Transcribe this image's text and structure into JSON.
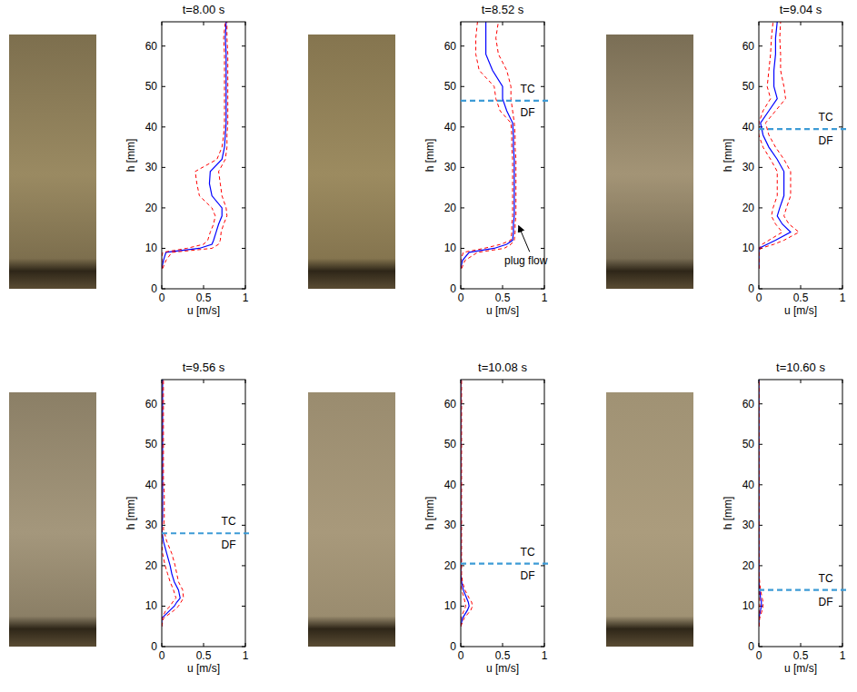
{
  "chart_data": [
    {
      "type": "line",
      "title": "t=8.00 s",
      "x_label": "u [m/s]",
      "y_label": "h [mm]",
      "xlim": [
        0,
        1
      ],
      "ylim": [
        0,
        66
      ],
      "xticks": [
        0,
        0.5,
        1
      ],
      "yticks": [
        0,
        10,
        20,
        30,
        40,
        50,
        60
      ],
      "y": [
        5,
        7,
        9,
        10,
        11,
        12,
        14,
        16,
        18,
        20,
        23,
        26,
        29,
        32,
        35,
        38,
        41,
        44,
        47,
        50,
        54,
        58,
        62,
        66
      ],
      "series": [
        {
          "color": "#0000ff",
          "line_style": "solid",
          "values": [
            0,
            0.02,
            0.05,
            0.45,
            0.6,
            0.62,
            0.65,
            0.68,
            0.72,
            0.72,
            0.6,
            0.57,
            0.58,
            0.72,
            0.75,
            0.76,
            0.77,
            0.77,
            0.77,
            0.77,
            0.77,
            0.77,
            0.76,
            0.77
          ]
        },
        {
          "color": "#ff0000",
          "line_style": "dashed",
          "values": [
            0.01,
            0.05,
            0.12,
            0.6,
            0.68,
            0.7,
            0.71,
            0.74,
            0.78,
            0.77,
            0.72,
            0.7,
            0.68,
            0.76,
            0.78,
            0.78,
            0.79,
            0.79,
            0.79,
            0.79,
            0.79,
            0.79,
            0.78,
            0.78
          ]
        },
        {
          "color": "#ff0000",
          "line_style": "dashed",
          "values": [
            0,
            0,
            0.01,
            0.3,
            0.5,
            0.55,
            0.58,
            0.62,
            0.64,
            0.6,
            0.45,
            0.42,
            0.4,
            0.66,
            0.72,
            0.74,
            0.75,
            0.75,
            0.75,
            0.75,
            0.75,
            0.75,
            0.74,
            0.76
          ]
        }
      ]
    },
    {
      "type": "line",
      "title": "t=8.52 s",
      "x_label": "u [m/s]",
      "y_label": "h [mm]",
      "xlim": [
        0,
        1
      ],
      "ylim": [
        0,
        66
      ],
      "xticks": [
        0,
        0.5,
        1
      ],
      "yticks": [
        0,
        10,
        20,
        30,
        40,
        50,
        60
      ],
      "y": [
        5,
        7,
        9,
        10,
        11,
        12,
        14,
        16,
        18,
        20,
        23,
        26,
        29,
        32,
        35,
        38,
        41,
        44,
        47,
        50,
        54,
        58,
        62,
        66
      ],
      "series": [
        {
          "color": "#0000ff",
          "line_style": "solid",
          "values": [
            0,
            0.02,
            0.1,
            0.4,
            0.55,
            0.62,
            0.63,
            0.63,
            0.64,
            0.64,
            0.64,
            0.64,
            0.64,
            0.64,
            0.63,
            0.63,
            0.62,
            0.55,
            0.5,
            0.5,
            0.38,
            0.3,
            0.3,
            0.3
          ]
        },
        {
          "color": "#ff0000",
          "line_style": "dashed",
          "values": [
            0.01,
            0.05,
            0.2,
            0.52,
            0.6,
            0.64,
            0.65,
            0.65,
            0.66,
            0.66,
            0.66,
            0.66,
            0.66,
            0.66,
            0.65,
            0.65,
            0.64,
            0.62,
            0.6,
            0.6,
            0.55,
            0.45,
            0.42,
            0.45
          ]
        },
        {
          "color": "#ff0000",
          "line_style": "dashed",
          "values": [
            0,
            0,
            0.03,
            0.28,
            0.48,
            0.6,
            0.61,
            0.61,
            0.62,
            0.62,
            0.62,
            0.62,
            0.62,
            0.62,
            0.61,
            0.61,
            0.6,
            0.47,
            0.42,
            0.4,
            0.22,
            0.18,
            0.18,
            0.2
          ]
        }
      ],
      "interface": {
        "h": 46.5,
        "labels": [
          "TC",
          "DF"
        ]
      },
      "annotations": [
        {
          "text": "plug flow",
          "x": 0.78,
          "y": 6,
          "arrow_to": {
            "x": 0.66,
            "y": 16
          }
        }
      ]
    },
    {
      "type": "line",
      "title": "t=9.04 s",
      "x_label": "u [m/s]",
      "y_label": "h [mm]",
      "xlim": [
        0,
        1
      ],
      "ylim": [
        0,
        66
      ],
      "xticks": [
        0,
        0.5,
        1
      ],
      "yticks": [
        0,
        10,
        20,
        30,
        40,
        50,
        60
      ],
      "y": [
        5,
        7,
        9,
        10,
        11,
        12,
        14,
        16,
        18,
        20,
        23,
        26,
        29,
        32,
        35,
        38,
        41,
        44,
        47,
        50,
        54,
        58,
        62,
        66
      ],
      "series": [
        {
          "color": "#0000ff",
          "line_style": "solid",
          "values": [
            0,
            0,
            0,
            0,
            0.1,
            0.2,
            0.38,
            0.28,
            0.22,
            0.25,
            0.3,
            0.3,
            0.3,
            0.22,
            0.12,
            0.05,
            0.02,
            0.12,
            0.22,
            0.18,
            0.18,
            0.2,
            0.2,
            0.22
          ]
        },
        {
          "color": "#ff0000",
          "line_style": "dashed",
          "values": [
            0,
            0,
            0,
            0.02,
            0.18,
            0.3,
            0.48,
            0.36,
            0.3,
            0.33,
            0.38,
            0.38,
            0.38,
            0.3,
            0.2,
            0.12,
            0.08,
            0.2,
            0.32,
            0.3,
            0.26,
            0.26,
            0.25,
            0.26
          ]
        },
        {
          "color": "#ff0000",
          "line_style": "dashed",
          "values": [
            0,
            0,
            0,
            0,
            0.04,
            0.12,
            0.28,
            0.2,
            0.15,
            0.17,
            0.22,
            0.22,
            0.22,
            0.14,
            0.05,
            0,
            0,
            0.05,
            0.14,
            0.1,
            0.12,
            0.14,
            0.15,
            0.17
          ]
        }
      ],
      "interface": {
        "h": 39.5,
        "labels": [
          "TC",
          "DF"
        ]
      }
    },
    {
      "type": "line",
      "title": "t=9.56 s",
      "x_label": "u [m/s]",
      "y_label": "h [mm]",
      "xlim": [
        0,
        1
      ],
      "ylim": [
        0,
        66
      ],
      "xticks": [
        0,
        0.5,
        1
      ],
      "yticks": [
        0,
        10,
        20,
        30,
        40,
        50,
        60
      ],
      "y": [
        5,
        7,
        9,
        10,
        11,
        12,
        14,
        16,
        18,
        20,
        23,
        26,
        29,
        32,
        35,
        38,
        41,
        44,
        47,
        50,
        54,
        58,
        62,
        66
      ],
      "series": [
        {
          "color": "#0000ff",
          "line_style": "solid",
          "values": [
            0,
            0,
            0.1,
            0.15,
            0.18,
            0.22,
            0.2,
            0.15,
            0.12,
            0.1,
            0.06,
            0.02,
            0,
            0.01,
            0.01,
            0.01,
            0.01,
            0.01,
            0.01,
            0.01,
            0.01,
            0.01,
            0.01,
            0.01
          ]
        },
        {
          "color": "#ff0000",
          "line_style": "dashed",
          "values": [
            0,
            0.02,
            0.15,
            0.2,
            0.23,
            0.26,
            0.25,
            0.2,
            0.18,
            0.16,
            0.12,
            0.06,
            0.02,
            0.03,
            0.03,
            0.03,
            0.02,
            0.02,
            0.02,
            0.02,
            0.02,
            0.02,
            0.02,
            0.02
          ]
        },
        {
          "color": "#ff0000",
          "line_style": "dashed",
          "values": [
            0,
            0,
            0.05,
            0.1,
            0.13,
            0.17,
            0.14,
            0.1,
            0.07,
            0.04,
            0.01,
            0,
            0,
            0,
            0,
            0,
            0,
            0,
            0,
            0,
            0,
            0,
            0,
            0
          ]
        }
      ],
      "interface": {
        "h": 28,
        "labels": [
          "TC",
          "DF"
        ]
      }
    },
    {
      "type": "line",
      "title": "t=10.08 s",
      "x_label": "u [m/s]",
      "y_label": "h [mm]",
      "xlim": [
        0,
        1
      ],
      "ylim": [
        0,
        66
      ],
      "xticks": [
        0,
        0.5,
        1
      ],
      "yticks": [
        0,
        10,
        20,
        30,
        40,
        50,
        60
      ],
      "y": [
        5,
        7,
        9,
        10,
        11,
        12,
        14,
        16,
        18,
        20,
        23,
        26,
        29,
        32,
        35,
        38,
        41,
        44,
        47,
        50,
        54,
        58,
        62,
        66
      ],
      "series": [
        {
          "color": "#0000ff",
          "line_style": "solid",
          "values": [
            0,
            0.02,
            0.08,
            0.1,
            0.09,
            0.07,
            0.03,
            0.01,
            0,
            0,
            0,
            0,
            0,
            0,
            0,
            0,
            0,
            0,
            0,
            0,
            0,
            0,
            0,
            0
          ]
        },
        {
          "color": "#ff0000",
          "line_style": "dashed",
          "values": [
            0,
            0.04,
            0.12,
            0.14,
            0.13,
            0.1,
            0.05,
            0.02,
            0.01,
            0.01,
            0.01,
            0.01,
            0.01,
            0.01,
            0.01,
            0.01,
            0.01,
            0.01,
            0.01,
            0.01,
            0.01,
            0.01,
            0.01,
            0.01
          ]
        },
        {
          "color": "#ff0000",
          "line_style": "dashed",
          "values": [
            0,
            0,
            0.04,
            0.06,
            0.05,
            0.04,
            0.01,
            0,
            0,
            0,
            0,
            0,
            0,
            0,
            0,
            0,
            0,
            0,
            0,
            0,
            0,
            0,
            0,
            0
          ]
        }
      ],
      "interface": {
        "h": 20.5,
        "labels": [
          "TC",
          "DF"
        ]
      }
    },
    {
      "type": "line",
      "title": "t=10.60 s",
      "x_label": "u [m/s]",
      "y_label": "h [mm]",
      "xlim": [
        0,
        1
      ],
      "ylim": [
        0,
        66
      ],
      "xticks": [
        0,
        0.5,
        1
      ],
      "yticks": [
        0,
        10,
        20,
        30,
        40,
        50,
        60
      ],
      "y": [
        5,
        7,
        9,
        10,
        11,
        12,
        14,
        16,
        18,
        20,
        23,
        26,
        29,
        32,
        35,
        38,
        41,
        44,
        47,
        50,
        54,
        58,
        62,
        66
      ],
      "series": [
        {
          "color": "#0000ff",
          "line_style": "solid",
          "values": [
            0,
            0,
            0.02,
            0.03,
            0.03,
            0.02,
            0.01,
            0,
            0,
            0,
            0,
            0,
            0,
            0,
            0,
            0,
            0,
            0,
            0,
            0,
            0,
            0,
            0,
            0
          ]
        },
        {
          "color": "#ff0000",
          "line_style": "dashed",
          "values": [
            0,
            0.01,
            0.04,
            0.05,
            0.05,
            0.04,
            0.02,
            0.01,
            0,
            0,
            0,
            0,
            0,
            0,
            0,
            0,
            0,
            0,
            0,
            0,
            0,
            0,
            0,
            0
          ]
        },
        {
          "color": "#ff0000",
          "line_style": "dashed",
          "values": [
            0,
            0,
            0.01,
            0.01,
            0.01,
            0.01,
            0,
            0,
            0,
            0,
            0,
            0,
            0,
            0,
            0,
            0,
            0,
            0,
            0,
            0,
            0,
            0,
            0,
            0
          ]
        }
      ],
      "interface": {
        "h": 14,
        "labels": [
          "TC",
          "DF"
        ]
      }
    }
  ]
}
